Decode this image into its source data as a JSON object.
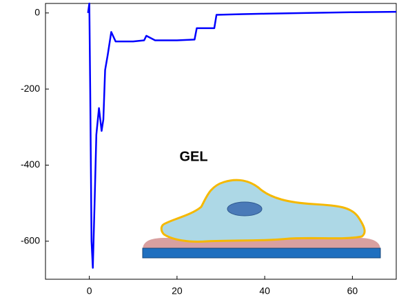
{
  "chart_data": {
    "type": "line",
    "annotation": "GEL",
    "x": [
      -0.3,
      0,
      0.2,
      0.5,
      0.8,
      1.2,
      1.6,
      2.2,
      2.8,
      3.2,
      3.6,
      4.2,
      5,
      6,
      10,
      12.5,
      13,
      15,
      20,
      24,
      24.5,
      28.5,
      29,
      35,
      40,
      50,
      60,
      70
    ],
    "series": [
      {
        "color": "#0000ff",
        "values": [
          0,
          25,
          -200,
          -600,
          -670,
          -500,
          -320,
          -250,
          -310,
          -280,
          -150,
          -110,
          -50,
          -75,
          -75,
          -72,
          -60,
          -72,
          -72,
          -70,
          -40,
          -40,
          -5,
          -3,
          -2,
          0,
          2,
          3
        ]
      }
    ],
    "xlim": [
      -10,
      70
    ],
    "ylim": [
      -700,
      25
    ],
    "xticks": [
      0,
      20,
      40,
      60
    ],
    "yticks": [
      0,
      -200,
      -400,
      -600
    ],
    "grid": false
  }
}
